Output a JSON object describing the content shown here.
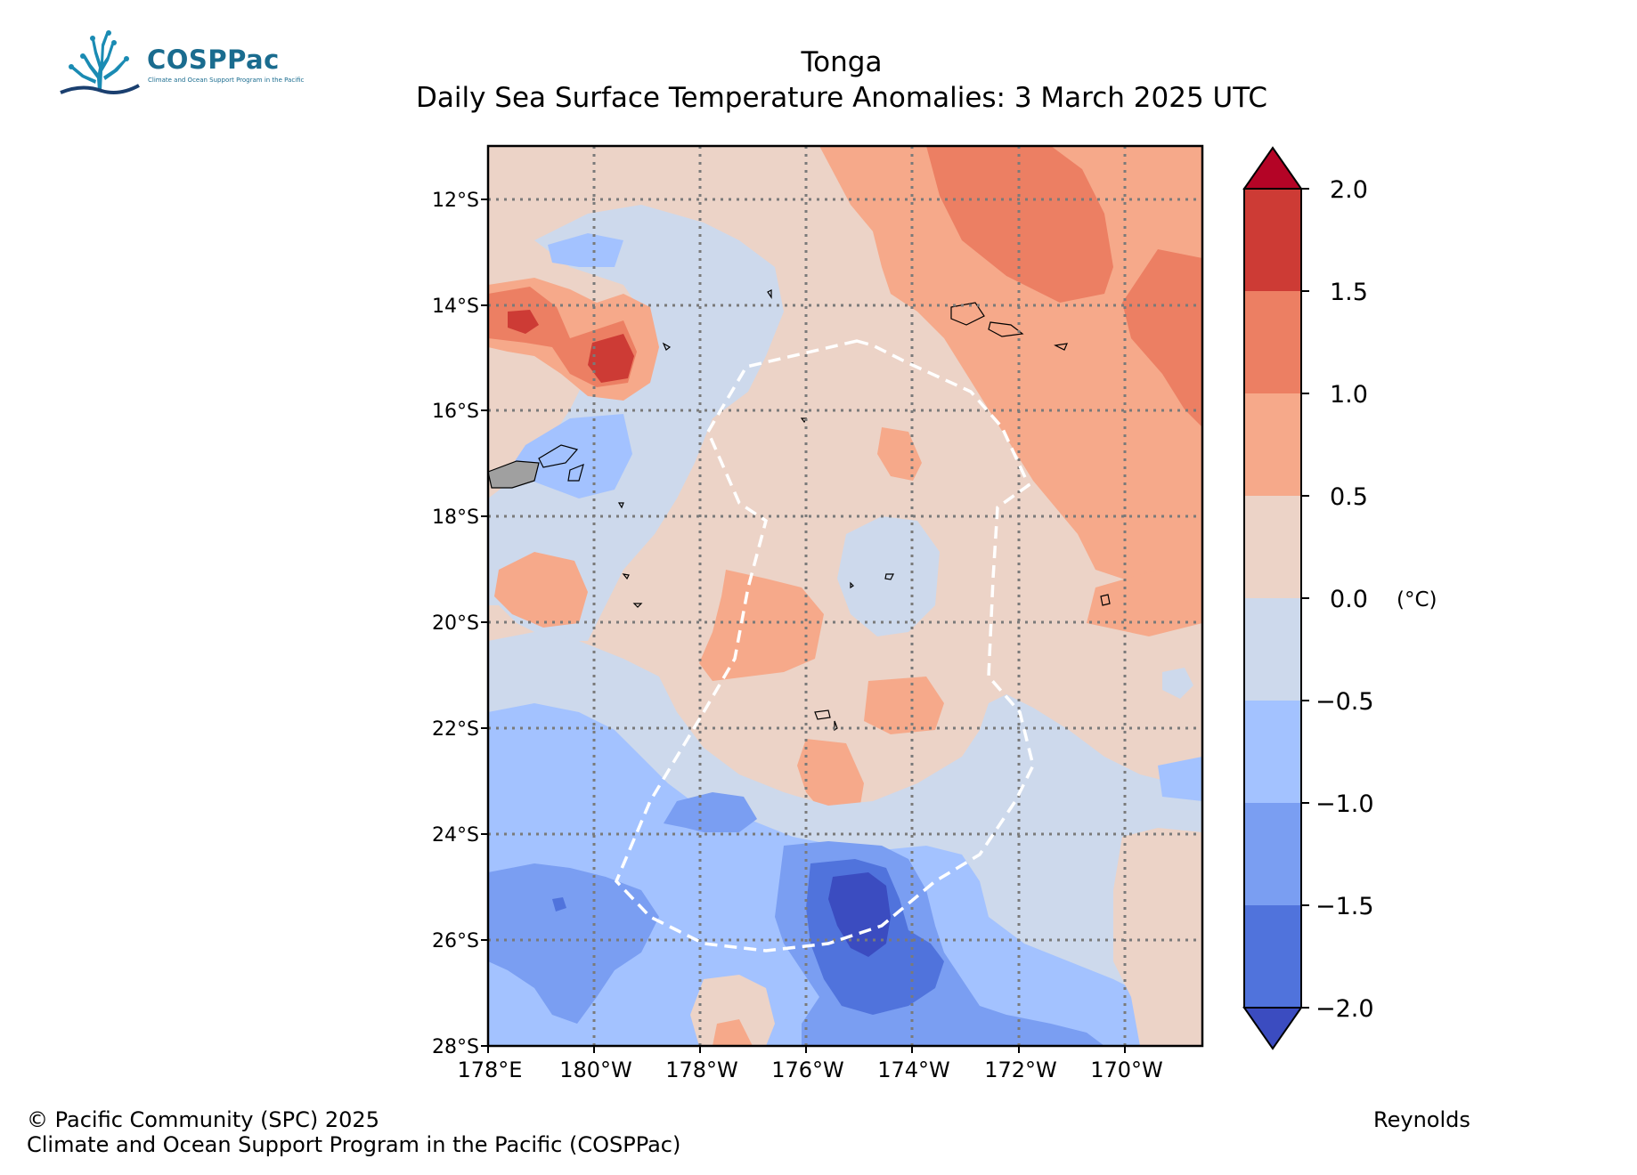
{
  "header": {
    "title": "Tonga",
    "subtitle": "Daily Sea Surface Temperature Anomalies: 3 March 2025 UTC"
  },
  "logo": {
    "name": "COSPPac",
    "tagline": "Climate and Ocean Support Program in the Pacific",
    "color": "#1a8bb3"
  },
  "map": {
    "lat_labels": [
      "12°S",
      "14°S",
      "16°S",
      "18°S",
      "20°S",
      "22°S",
      "24°S",
      "26°S",
      "28°S"
    ],
    "lon_labels": [
      "178°E",
      "180°W",
      "178°W",
      "176°W",
      "174°W",
      "172°W",
      "170°W"
    ],
    "grid_style": "dotted",
    "land_color": "#a0a0a0",
    "eez_boundary_color": "#ffffff"
  },
  "colorbar": {
    "unit": "(°C)",
    "tick_labels": [
      "2.0",
      "1.5",
      "1.0",
      "0.5",
      "0.0",
      "−0.5",
      "−1.0",
      "−1.5",
      "−2.0"
    ],
    "colors": [
      "#b40426",
      "#cd3b35",
      "#ec7f63",
      "#f6a98a",
      "#ecd3c7",
      "#cdd9ec",
      "#a3c2ff",
      "#7a9ef2",
      "#5073dc",
      "#3b4cc0"
    ],
    "extend": "both"
  },
  "footer": {
    "copyright": "© Pacific Community (SPC) 2025",
    "program": "Climate and Ocean Support Program in the Pacific (COSPPac)",
    "source": "Reynolds"
  }
}
